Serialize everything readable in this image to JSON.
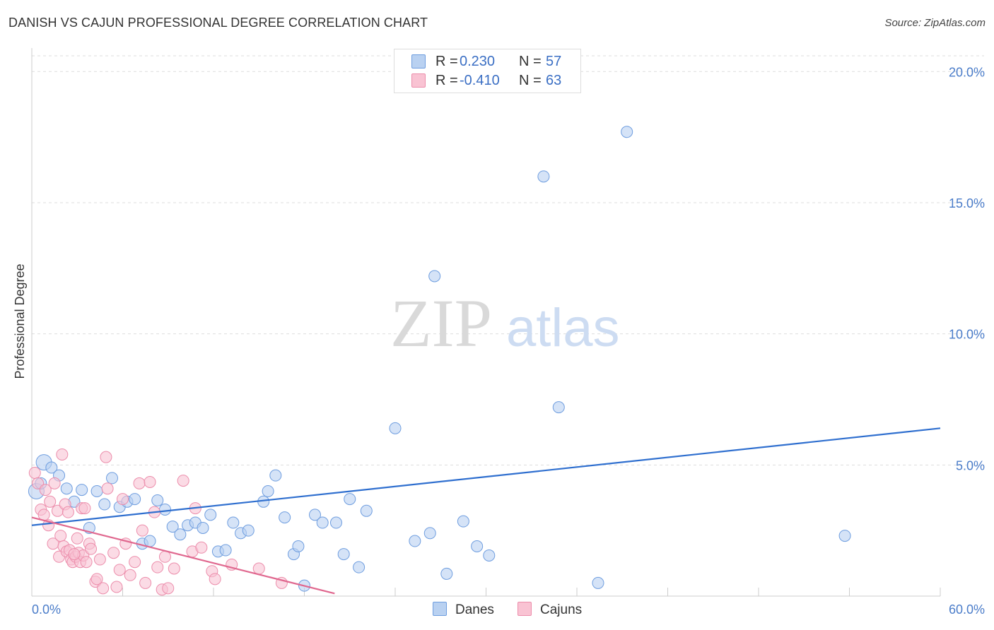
{
  "title": "DANISH VS CAJUN PROFESSIONAL DEGREE CORRELATION CHART",
  "source": "Source: ZipAtlas.com",
  "watermark": {
    "zip": "ZIP",
    "atlas": "atlas"
  },
  "colors": {
    "danes_fill": "#b9d1f1",
    "danes_stroke": "#6e9ddf",
    "danes_line": "#2f6fcf",
    "cajuns_fill": "#f9c3d3",
    "cajuns_stroke": "#ec8dab",
    "cajuns_line": "#e0688f",
    "axis_text": "#4a7cc9",
    "grid": "#dddddd"
  },
  "legend": {
    "rows": [
      {
        "r_label": "R =",
        "r_value": "0.230",
        "n_label": "N =",
        "n_value": "57"
      },
      {
        "r_label": "R =",
        "r_value": "-0.410",
        "n_label": "N =",
        "n_value": "63"
      }
    ]
  },
  "bottom_legend": [
    "Danes",
    "Cajuns"
  ],
  "chart_data": {
    "type": "scatter",
    "title": "DANISH VS CAJUN PROFESSIONAL DEGREE CORRELATION CHART",
    "xlabel": "",
    "ylabel": "Professional Degree",
    "xlim": [
      0,
      60
    ],
    "ylim": [
      0,
      20.6
    ],
    "x_tick_labels": [
      "0.0%",
      "60.0%"
    ],
    "y_ticks": [
      5,
      10,
      15,
      20
    ],
    "y_tick_labels": [
      "5.0%",
      "10.0%",
      "15.0%",
      "20.0%"
    ],
    "grid": true,
    "series": [
      {
        "name": "Danes",
        "r": 0.23,
        "n": 57,
        "trend": {
          "x": [
            0,
            60
          ],
          "y": [
            2.7,
            6.4
          ]
        },
        "points": [
          [
            0.3,
            4.0,
            "l"
          ],
          [
            0.8,
            5.1,
            "l"
          ],
          [
            1.3,
            4.9
          ],
          [
            1.8,
            4.6
          ],
          [
            2.3,
            4.1
          ],
          [
            2.8,
            3.6
          ],
          [
            3.3,
            4.05
          ],
          [
            3.8,
            2.6
          ],
          [
            4.3,
            4.0
          ],
          [
            4.8,
            3.5
          ],
          [
            5.3,
            4.5
          ],
          [
            5.8,
            3.4
          ],
          [
            6.3,
            3.6
          ],
          [
            6.8,
            3.7
          ],
          [
            7.3,
            2.0
          ],
          [
            7.8,
            2.1
          ],
          [
            8.3,
            3.65
          ],
          [
            8.8,
            3.3
          ],
          [
            9.3,
            2.65
          ],
          [
            9.8,
            2.35
          ],
          [
            10.3,
            2.7
          ],
          [
            10.8,
            2.8
          ],
          [
            11.3,
            2.6
          ],
          [
            11.8,
            3.1
          ],
          [
            12.3,
            1.7
          ],
          [
            12.8,
            1.75
          ],
          [
            13.3,
            2.8
          ],
          [
            13.8,
            2.4
          ],
          [
            14.3,
            2.5
          ],
          [
            15.3,
            3.6
          ],
          [
            15.6,
            4.0
          ],
          [
            16.1,
            4.6
          ],
          [
            16.7,
            3.0
          ],
          [
            17.3,
            1.6
          ],
          [
            17.6,
            1.9
          ],
          [
            18.0,
            0.4
          ],
          [
            18.7,
            3.1
          ],
          [
            19.2,
            2.8
          ],
          [
            20.1,
            2.8
          ],
          [
            20.6,
            1.6
          ],
          [
            21.0,
            3.7
          ],
          [
            21.6,
            1.1
          ],
          [
            22.1,
            3.25
          ],
          [
            24.0,
            6.4
          ],
          [
            25.3,
            2.1
          ],
          [
            26.3,
            2.4
          ],
          [
            26.6,
            12.2
          ],
          [
            27.4,
            0.85
          ],
          [
            28.5,
            2.85
          ],
          [
            29.4,
            1.9
          ],
          [
            30.2,
            1.55
          ],
          [
            33.8,
            16.0
          ],
          [
            34.8,
            7.2
          ],
          [
            37.4,
            0.5
          ],
          [
            39.3,
            17.7
          ],
          [
            53.7,
            2.3
          ],
          [
            0.6,
            4.3
          ]
        ]
      },
      {
        "name": "Cajuns",
        "r": -0.41,
        "n": 63,
        "trend": {
          "x": [
            0,
            20
          ],
          "y": [
            3.0,
            0.1
          ]
        },
        "points": [
          [
            0.2,
            4.7
          ],
          [
            0.4,
            4.3
          ],
          [
            0.6,
            3.3
          ],
          [
            0.8,
            3.1
          ],
          [
            0.9,
            4.05
          ],
          [
            1.1,
            2.7
          ],
          [
            1.2,
            3.6
          ],
          [
            1.4,
            2.0
          ],
          [
            1.5,
            4.3
          ],
          [
            1.7,
            3.25
          ],
          [
            1.8,
            1.5
          ],
          [
            1.9,
            2.3
          ],
          [
            2.0,
            5.4
          ],
          [
            2.1,
            1.9
          ],
          [
            2.2,
            3.5
          ],
          [
            2.3,
            1.7
          ],
          [
            2.4,
            3.2
          ],
          [
            2.5,
            1.75
          ],
          [
            2.6,
            1.4
          ],
          [
            2.7,
            1.3
          ],
          [
            2.9,
            1.5
          ],
          [
            3.0,
            2.2
          ],
          [
            3.1,
            1.65
          ],
          [
            3.2,
            1.3
          ],
          [
            3.3,
            3.35
          ],
          [
            3.4,
            1.55
          ],
          [
            3.5,
            3.35
          ],
          [
            3.6,
            1.3
          ],
          [
            3.8,
            2.0
          ],
          [
            3.9,
            1.8
          ],
          [
            4.2,
            0.55
          ],
          [
            4.3,
            0.65
          ],
          [
            4.5,
            1.4
          ],
          [
            4.7,
            0.3
          ],
          [
            4.9,
            5.3
          ],
          [
            5.0,
            4.1
          ],
          [
            5.4,
            1.65
          ],
          [
            5.6,
            0.35
          ],
          [
            5.8,
            1.0
          ],
          [
            6.0,
            3.7
          ],
          [
            6.5,
            0.8
          ],
          [
            6.8,
            1.3
          ],
          [
            7.1,
            4.3
          ],
          [
            7.3,
            2.5
          ],
          [
            7.5,
            0.5
          ],
          [
            7.8,
            4.35
          ],
          [
            8.1,
            3.2
          ],
          [
            8.3,
            1.1
          ],
          [
            8.6,
            0.25
          ],
          [
            8.8,
            1.5
          ],
          [
            9.0,
            0.3
          ],
          [
            9.4,
            1.05
          ],
          [
            10.0,
            4.4
          ],
          [
            10.6,
            1.7
          ],
          [
            10.8,
            3.35
          ],
          [
            11.2,
            1.85
          ],
          [
            11.9,
            0.95
          ],
          [
            12.1,
            0.65
          ],
          [
            13.2,
            1.2
          ],
          [
            15.0,
            1.05
          ],
          [
            16.5,
            0.5
          ],
          [
            2.8,
            1.6
          ],
          [
            6.2,
            2.0
          ]
        ]
      }
    ]
  }
}
